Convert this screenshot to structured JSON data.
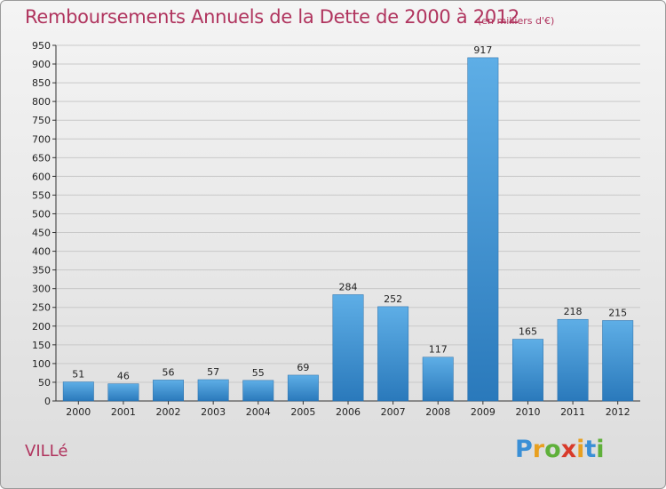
{
  "header": {
    "title": "Remboursements Annuels de la Dette de 2000 à 2012",
    "subtitle": "(en milliers d'€)"
  },
  "footer": {
    "town": "VILLé",
    "logo_letters": [
      {
        "ch": "P",
        "color": "#3a8fd6"
      },
      {
        "ch": "r",
        "color": "#e8a020"
      },
      {
        "ch": "o",
        "color": "#5fb03a"
      },
      {
        "ch": "x",
        "color": "#d83a2a"
      },
      {
        "ch": "i",
        "color": "#e8a020"
      },
      {
        "ch": "t",
        "color": "#3a8fd6"
      },
      {
        "ch": "i",
        "color": "#5fb03a"
      }
    ]
  },
  "chart_data": {
    "type": "bar",
    "categories": [
      "2000",
      "2001",
      "2002",
      "2003",
      "2004",
      "2005",
      "2006",
      "2007",
      "2008",
      "2009",
      "2010",
      "2011",
      "2012"
    ],
    "values": [
      51,
      46,
      56,
      57,
      55,
      69,
      284,
      252,
      117,
      917,
      165,
      218,
      215
    ],
    "data_labels": [
      "51",
      "46",
      "56",
      "57",
      "55",
      "69",
      "284",
      "252",
      "117",
      "917",
      "165",
      "218",
      "215"
    ],
    "ylim": [
      0,
      950
    ],
    "yticks": [
      0,
      50,
      100,
      150,
      200,
      250,
      300,
      350,
      400,
      450,
      500,
      550,
      600,
      650,
      700,
      750,
      800,
      850,
      900,
      950
    ],
    "ytick_labels": [
      "0",
      "50",
      "100",
      "150",
      "200",
      "250",
      "300",
      "350",
      "400",
      "450",
      "500",
      "550",
      "600",
      "650",
      "700",
      "750",
      "800",
      "850",
      "900",
      "950"
    ],
    "grid": true,
    "bar_color": "#3f93d6",
    "bar_color_light": "#5eaee6",
    "bar_color_dark": "#2a79bb"
  }
}
